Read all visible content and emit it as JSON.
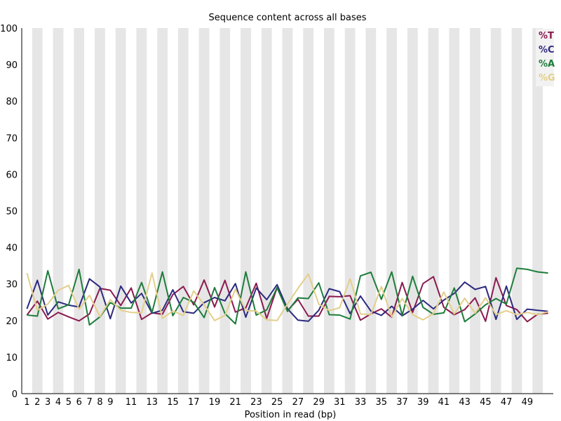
{
  "chart_data": {
    "type": "line",
    "title": "Sequence content across all bases",
    "xlabel": "Position in read (bp)",
    "ylabel": "",
    "ylim": [
      0,
      100
    ],
    "yticks": [
      "0",
      "10",
      "20",
      "30",
      "40",
      "50",
      "60",
      "70",
      "80",
      "90",
      "100"
    ],
    "categories": [
      "1",
      "2",
      "3",
      "4",
      "5",
      "6",
      "7",
      "8",
      "9",
      "10",
      "11",
      "12",
      "13",
      "14",
      "15",
      "16",
      "17",
      "18",
      "19",
      "20",
      "21",
      "22",
      "23",
      "24",
      "25",
      "26",
      "27",
      "28",
      "29",
      "30",
      "31",
      "32",
      "33",
      "34",
      "35",
      "36",
      "37",
      "38",
      "39",
      "40",
      "41",
      "42",
      "43",
      "44",
      "45",
      "46",
      "47",
      "48",
      "49",
      "50",
      "51"
    ],
    "xtick_labels": [
      "1",
      "2",
      "3",
      "4",
      "5",
      "6",
      "7",
      "8",
      "9",
      "11",
      "13",
      "15",
      "17",
      "19",
      "21",
      "23",
      "25",
      "27",
      "29",
      "31",
      "33",
      "35",
      "37",
      "39",
      "41",
      "43",
      "45",
      "47",
      "49"
    ],
    "xtick_indices": [
      0,
      1,
      2,
      3,
      4,
      5,
      6,
      7,
      8,
      10,
      12,
      14,
      16,
      18,
      20,
      22,
      24,
      26,
      28,
      30,
      32,
      34,
      36,
      38,
      40,
      42,
      44,
      46,
      48
    ],
    "grid": "alternating vertical bands",
    "legend_position": "top-right",
    "series": [
      {
        "name": "%T",
        "color": "#8B1A4F",
        "values": [
          21.5,
          25.3,
          20.4,
          22.2,
          21.0,
          19.9,
          21.8,
          28.8,
          28.3,
          24.1,
          28.9,
          20.3,
          22.1,
          21.7,
          27.1,
          29.3,
          24.3,
          31.1,
          23.7,
          31.0,
          22.3,
          23.5,
          30.2,
          20.6,
          29.0,
          22.7,
          25.8,
          21.2,
          21.2,
          26.6,
          26.5,
          26.8,
          20.1,
          21.8,
          23.2,
          20.9,
          30.4,
          22.2,
          30.1,
          32.0,
          23.6,
          21.6,
          23.0,
          26.2,
          19.8,
          31.7,
          24.1,
          23.0,
          19.7,
          21.7,
          22.0
        ]
      },
      {
        "name": "%C",
        "color": "#2D2A7F",
        "values": [
          23.2,
          31.0,
          21.5,
          25.1,
          24.2,
          23.7,
          31.4,
          29.2,
          20.5,
          29.4,
          24.8,
          27.4,
          22.0,
          22.8,
          28.4,
          22.4,
          22.0,
          24.9,
          26.3,
          25.4,
          30.1,
          20.9,
          28.9,
          25.7,
          29.8,
          23.2,
          20.1,
          19.8,
          22.8,
          28.7,
          27.9,
          21.9,
          26.7,
          22.6,
          21.4,
          23.9,
          21.3,
          23.1,
          25.5,
          23.2,
          25.6,
          27.4,
          30.5,
          28.5,
          29.3,
          20.3,
          29.4,
          20.3,
          23.1,
          22.8,
          22.5
        ]
      },
      {
        "name": "%A",
        "color": "#1E7D3C",
        "values": [
          21.5,
          21.2,
          33.6,
          23.2,
          24.3,
          34.0,
          18.8,
          21.0,
          24.9,
          23.4,
          23.4,
          30.4,
          22.2,
          33.3,
          21.3,
          26.3,
          25.0,
          20.8,
          29.0,
          21.9,
          19.1,
          33.3,
          21.5,
          22.9,
          29.0,
          22.5,
          26.2,
          26.0,
          30.3,
          21.6,
          21.5,
          20.4,
          32.2,
          33.2,
          25.8,
          33.3,
          21.4,
          32.1,
          23.6,
          21.7,
          22.1,
          28.9,
          19.7,
          21.8,
          24.3,
          26.0,
          24.5,
          34.3,
          34.0,
          33.3,
          33.0
        ]
      },
      {
        "name": "%G",
        "color": "#E3CF8B",
        "values": [
          33.0,
          22.8,
          24.5,
          28.3,
          29.6,
          23.1,
          26.9,
          21.1,
          25.7,
          22.8,
          22.2,
          22.1,
          33.0,
          20.6,
          22.6,
          21.4,
          28.1,
          24.3,
          20.0,
          21.4,
          28.6,
          22.7,
          22.6,
          20.2,
          20.0,
          24.5,
          28.8,
          32.7,
          24.5,
          22.7,
          23.5,
          31.4,
          21.8,
          21.6,
          29.3,
          21.0,
          26.0,
          21.6,
          20.2,
          21.9,
          27.8,
          21.8,
          26.1,
          22.0,
          26.2,
          21.6,
          22.7,
          21.6,
          22.2,
          21.6,
          22.4
        ]
      }
    ]
  }
}
